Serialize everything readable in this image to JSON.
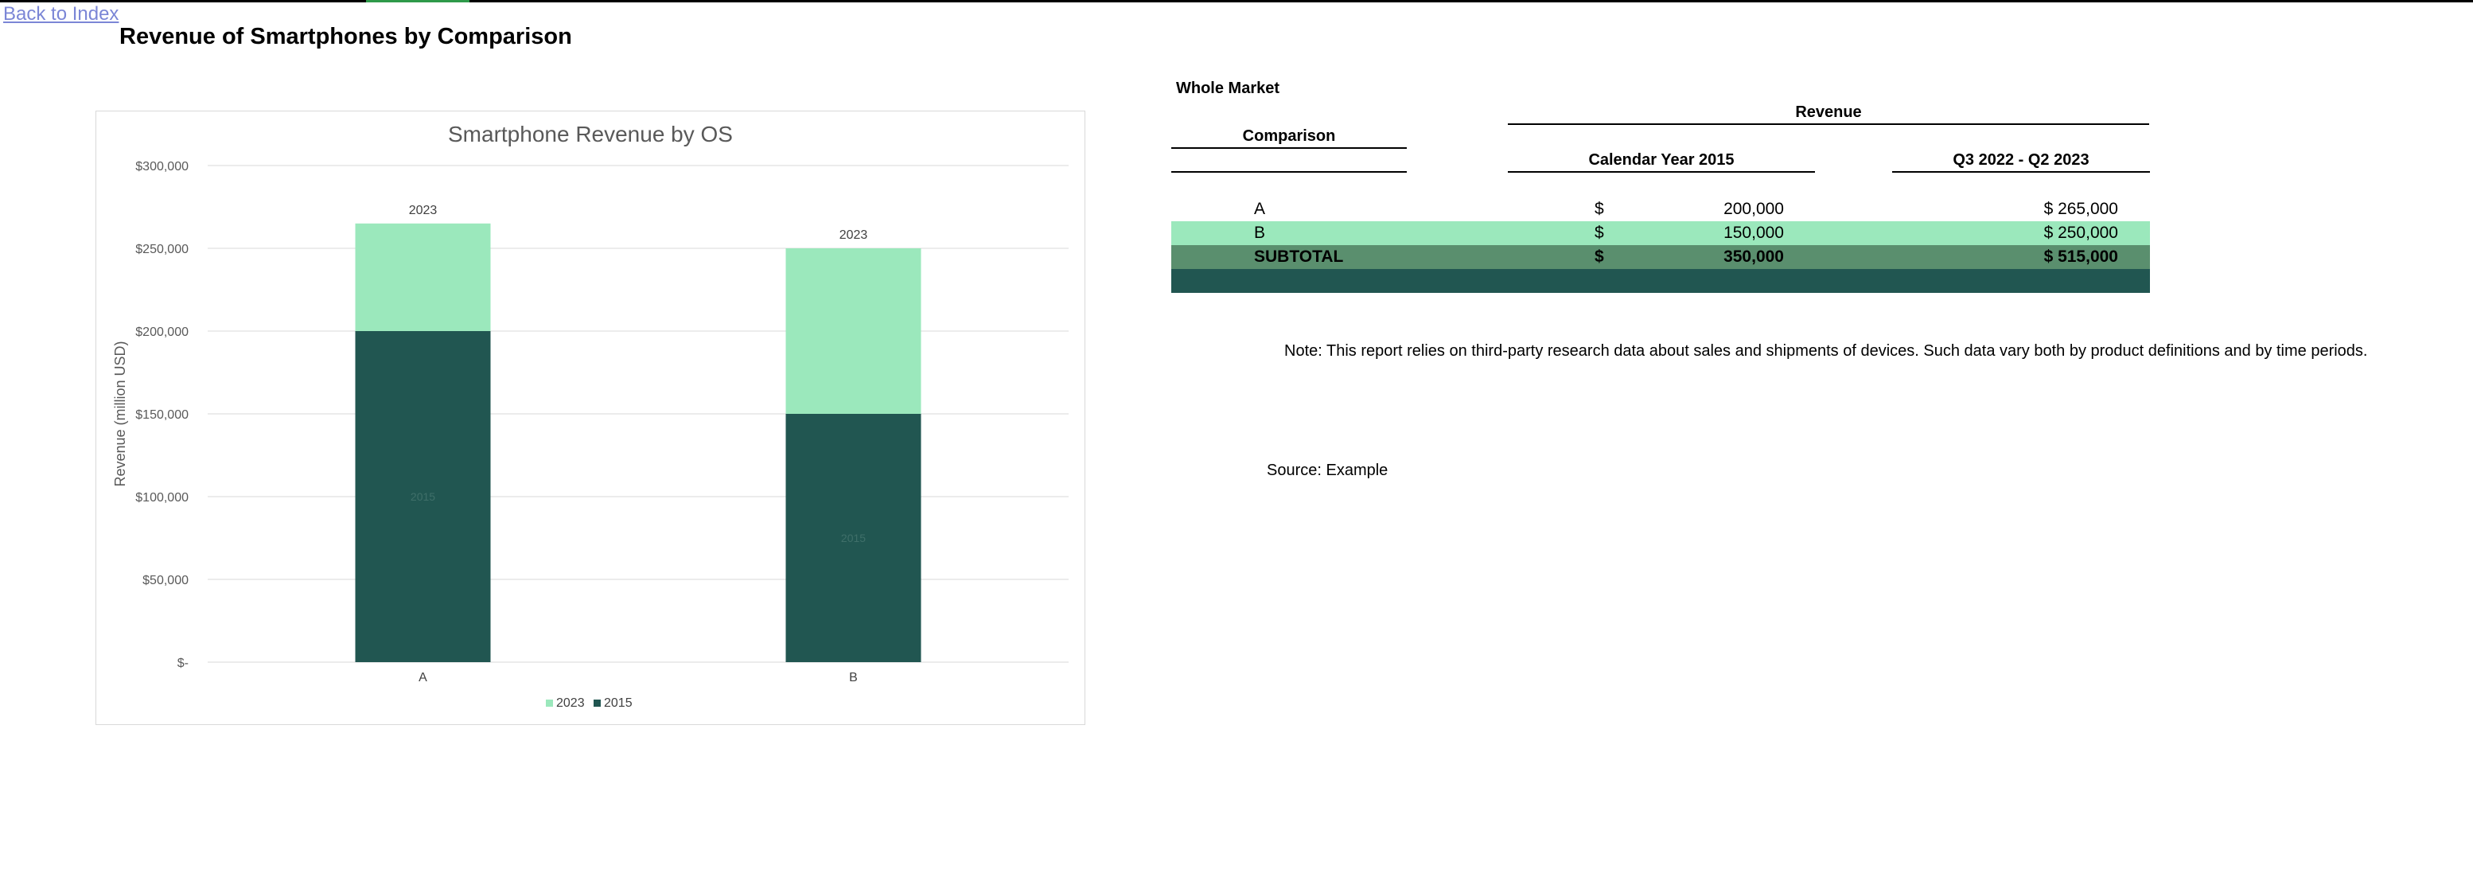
{
  "nav": {
    "back_label": "Back to Index"
  },
  "page": {
    "title": "Revenue of Smartphones by Comparison"
  },
  "chart_data": {
    "type": "bar",
    "stacked": true,
    "title": "Smartphone Revenue by OS",
    "ylabel": "Revenue (million USD)",
    "xlabel": "",
    "categories": [
      "A",
      "B"
    ],
    "series": [
      {
        "name": "2015",
        "values": [
          200000,
          150000
        ],
        "color": "#215651"
      },
      {
        "name": "2023",
        "values": [
          65000,
          100000
        ],
        "color": "#9be8bc"
      }
    ],
    "ylim": [
      0,
      300000
    ],
    "yticks": [
      0,
      50000,
      100000,
      150000,
      200000,
      250000,
      300000
    ],
    "ytick_labels": [
      "$-",
      "$50,000",
      "$100,000",
      "$150,000",
      "$200,000",
      "$250,000",
      "$300,000"
    ],
    "top_labels": [
      "2023",
      "2023"
    ],
    "inner_labels": [
      "2015",
      "2015"
    ],
    "legend": [
      "2023",
      "2015"
    ],
    "legend_position": "bottom",
    "grid": true
  },
  "table": {
    "section_label": "Whole Market",
    "revenue_header": "Revenue",
    "comparison_header": "Comparison",
    "col1_header": "Calendar Year 2015",
    "col2_header": "Q3 2022 - Q2 2023",
    "rows": [
      {
        "name": "A",
        "c1_cur": "$",
        "c1": "200,000",
        "c2": "$  265,000"
      },
      {
        "name": "B",
        "c1_cur": "$",
        "c1": "150,000",
        "c2": "$  250,000"
      },
      {
        "name": "SUBTOTAL",
        "c1_cur": "$",
        "c1": "350,000",
        "c2": "$  515,000"
      }
    ],
    "colors": {
      "row_b": "#9be8bc",
      "subtotal": "#5a8f6e",
      "footer": "#215651"
    }
  },
  "note": {
    "text": "Note:  This report relies on third-party research data about sales and shipments of devices. Such data vary both by product definitions and by time periods."
  },
  "source": {
    "text": "Source:  Example"
  }
}
